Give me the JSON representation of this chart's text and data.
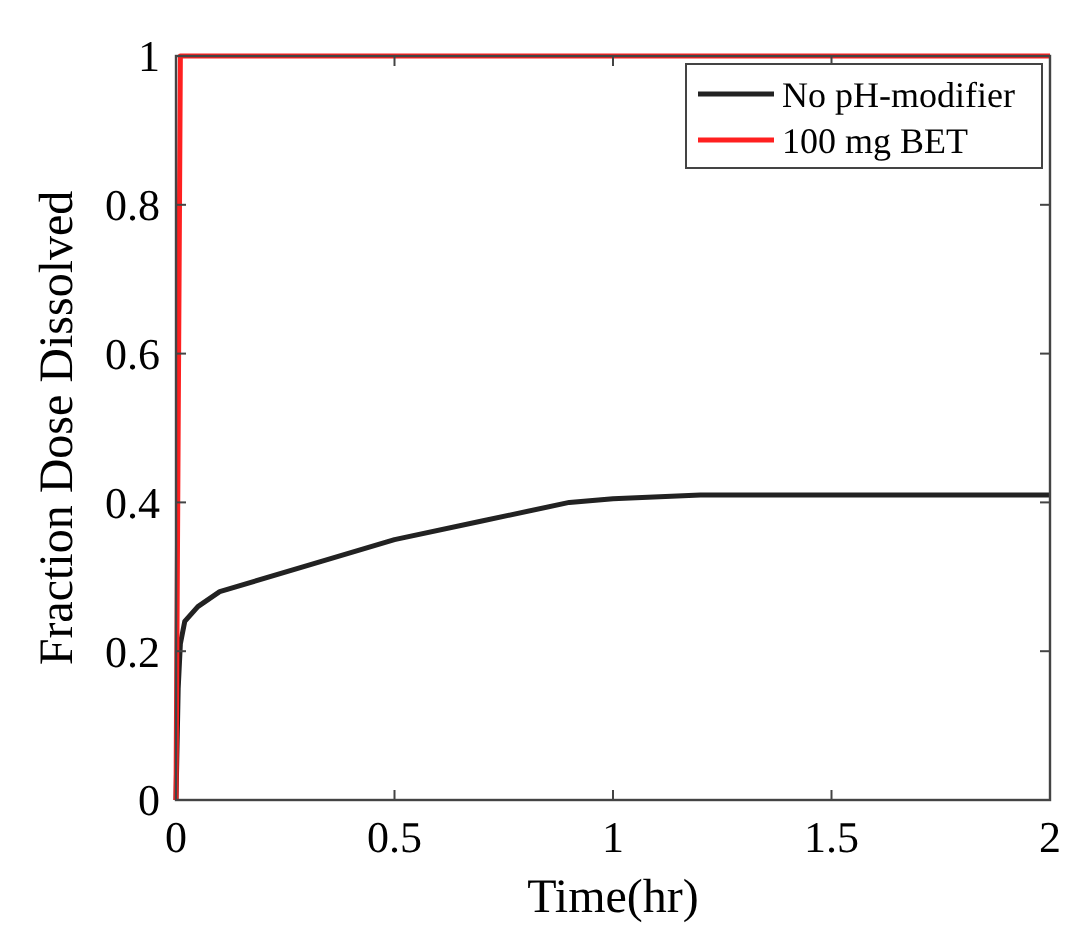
{
  "chart_data": {
    "type": "line",
    "xlabel": "Time(hr)",
    "ylabel": "Fraction Dose Dissolved",
    "xlim": [
      0,
      2
    ],
    "ylim": [
      0,
      1
    ],
    "xticks": [
      0,
      0.5,
      1,
      1.5,
      2
    ],
    "yticks": [
      0,
      0.2,
      0.4,
      0.6,
      0.8,
      1
    ],
    "legend": "top right",
    "grid": false,
    "line_style": "solid",
    "marker": "none",
    "series": [
      {
        "name": "No pH-modifier",
        "color": "#222222",
        "x": [
          0,
          0.005,
          0.01,
          0.02,
          0.05,
          0.1,
          0.3,
          0.5,
          0.7,
          0.9,
          1,
          1.2,
          2
        ],
        "values": [
          0,
          0.15,
          0.21,
          0.24,
          0.26,
          0.28,
          0.315,
          0.35,
          0.375,
          0.4,
          0.405,
          0.41,
          0.41
        ]
      },
      {
        "name": "100 mg BET",
        "color": "#ff2020",
        "x": [
          0,
          0.01,
          2
        ],
        "values": [
          0,
          1,
          1
        ]
      }
    ]
  }
}
